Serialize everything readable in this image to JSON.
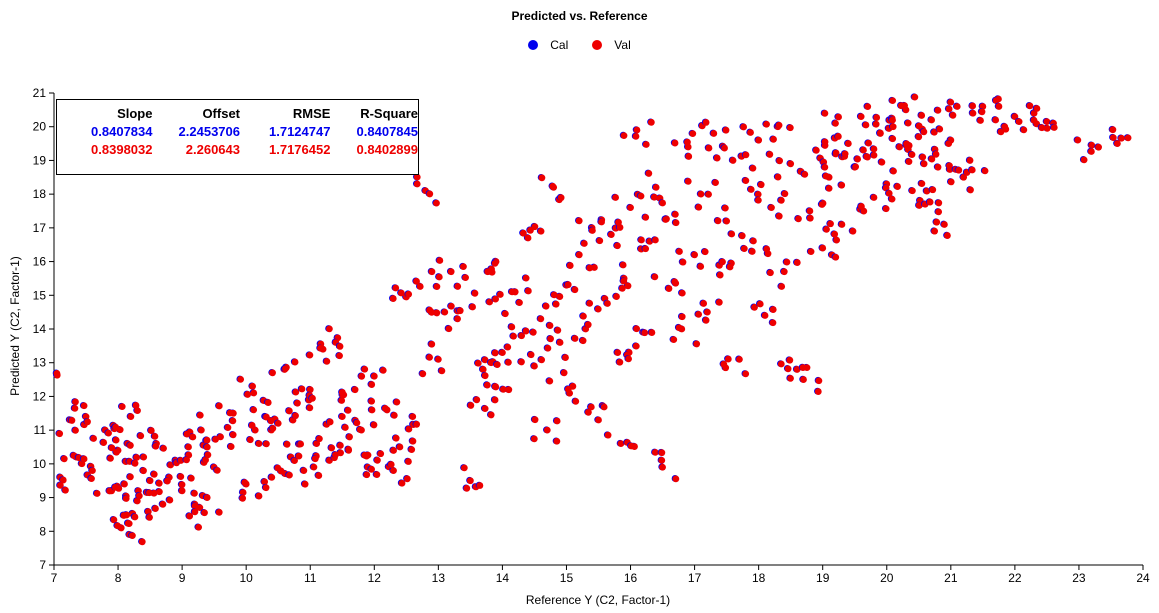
{
  "chart_data": {
    "type": "scatter",
    "title": "Predicted vs. Reference",
    "xlabel": "Reference Y (C2, Factor-1)",
    "ylabel": "Predicted Y (C2, Factor-1)",
    "xlim": [
      7,
      24
    ],
    "ylim": [
      7,
      21
    ],
    "x_ticks": [
      7,
      8,
      9,
      10,
      11,
      12,
      13,
      14,
      15,
      16,
      17,
      18,
      19,
      20,
      21,
      22,
      23,
      24
    ],
    "y_ticks": [
      7,
      8,
      9,
      10,
      11,
      12,
      13,
      14,
      15,
      16,
      17,
      18,
      19,
      20,
      21
    ],
    "legend_position": "top-center",
    "grid": false,
    "series": [
      {
        "name": "Cal",
        "color": "#0000ee"
      },
      {
        "name": "Val",
        "color": "#ee0000"
      }
    ],
    "points": [
      [
        7.05,
        12.63
      ],
      [
        7.1,
        9.6
      ],
      [
        7.25,
        11.3
      ],
      [
        7.35,
        10.2
      ],
      [
        7.5,
        11.4
      ],
      [
        7.6,
        9.8
      ],
      [
        7.8,
        11.0
      ],
      [
        7.9,
        9.2
      ],
      [
        8.0,
        10.4
      ],
      [
        8.05,
        8.1
      ],
      [
        8.1,
        9.4
      ],
      [
        8.15,
        10.6
      ],
      [
        8.18,
        7.9
      ],
      [
        8.2,
        11.4
      ],
      [
        8.3,
        8.9
      ],
      [
        8.4,
        10.2
      ],
      [
        8.5,
        9.5
      ],
      [
        8.6,
        10.6
      ],
      [
        8.7,
        8.8
      ],
      [
        8.8,
        9.6
      ],
      [
        8.9,
        10.1
      ],
      [
        9.0,
        9.2
      ],
      [
        9.1,
        10.5
      ],
      [
        9.2,
        8.8
      ],
      [
        9.3,
        11.0
      ],
      [
        9.35,
        8.55
      ],
      [
        9.5,
        9.9
      ],
      [
        9.6,
        10.8
      ],
      [
        9.8,
        11.5
      ],
      [
        10.0,
        9.4
      ],
      [
        10.1,
        12.3
      ],
      [
        10.2,
        10.6
      ],
      [
        10.3,
        11.4
      ],
      [
        10.4,
        9.6
      ],
      [
        10.5,
        11.2
      ],
      [
        10.6,
        12.8
      ],
      [
        10.7,
        10.2
      ],
      [
        10.8,
        11.8
      ],
      [
        10.9,
        9.8
      ],
      [
        11.0,
        12.2
      ],
      [
        11.1,
        10.6
      ],
      [
        11.2,
        13.4
      ],
      [
        11.3,
        10.1
      ],
      [
        11.4,
        13.6
      ],
      [
        11.5,
        11.4
      ],
      [
        11.6,
        10.4
      ],
      [
        11.7,
        12.2
      ],
      [
        11.8,
        11.0
      ],
      [
        11.9,
        9.9
      ],
      [
        12.0,
        12.6
      ],
      [
        12.1,
        10.3
      ],
      [
        12.2,
        11.6
      ],
      [
        12.3,
        9.8
      ],
      [
        12.4,
        10.5
      ],
      [
        12.5,
        14.95
      ],
      [
        12.6,
        11.4
      ],
      [
        12.8,
        18.1
      ],
      [
        12.9,
        15.7
      ],
      [
        13.0,
        13.1
      ],
      [
        13.1,
        14.5
      ],
      [
        13.2,
        15.7
      ],
      [
        13.3,
        14.3
      ],
      [
        13.5,
        9.5
      ],
      [
        13.6,
        11.9
      ],
      [
        13.7,
        12.8
      ],
      [
        13.8,
        14.8
      ],
      [
        13.9,
        16.0
      ],
      [
        14.0,
        13.3
      ],
      [
        14.1,
        12.2
      ],
      [
        14.2,
        15.1
      ],
      [
        14.3,
        13.8
      ],
      [
        14.4,
        16.7
      ],
      [
        14.5,
        12.9
      ],
      [
        14.6,
        14.3
      ],
      [
        14.7,
        11.0
      ],
      [
        14.8,
        18.2
      ],
      [
        14.9,
        13.6
      ],
      [
        15.0,
        15.3
      ],
      [
        15.1,
        12.3
      ],
      [
        15.2,
        16.2
      ],
      [
        15.3,
        14.0
      ],
      [
        15.4,
        17.0
      ],
      [
        15.5,
        11.3
      ],
      [
        15.6,
        14.9
      ],
      [
        15.7,
        16.8
      ],
      [
        15.8,
        13.3
      ],
      [
        15.85,
        10.6
      ],
      [
        15.9,
        15.5
      ],
      [
        16.0,
        17.6
      ],
      [
        16.1,
        19.9
      ],
      [
        16.2,
        13.9
      ],
      [
        16.3,
        16.6
      ],
      [
        16.4,
        18.2
      ],
      [
        16.5,
        9.9
      ],
      [
        16.6,
        15.2
      ],
      [
        16.7,
        17.4
      ],
      [
        16.8,
        14.0
      ],
      [
        16.9,
        19.4
      ],
      [
        17.0,
        16.2
      ],
      [
        17.1,
        18.0
      ],
      [
        17.2,
        14.5
      ],
      [
        17.3,
        19.8
      ],
      [
        17.4,
        15.6
      ],
      [
        17.5,
        17.2
      ],
      [
        17.6,
        19.0
      ],
      [
        17.7,
        13.1
      ],
      [
        17.8,
        18.4
      ],
      [
        17.9,
        16.3
      ],
      [
        18.0,
        19.6
      ],
      [
        18.1,
        14.4
      ],
      [
        18.2,
        17.6
      ],
      [
        18.3,
        20.0
      ],
      [
        18.4,
        15.7
      ],
      [
        18.5,
        18.9
      ],
      [
        18.6,
        12.8
      ],
      [
        18.7,
        12.5
      ],
      [
        18.8,
        17.5
      ],
      [
        18.9,
        19.3
      ],
      [
        19.0,
        16.4
      ],
      [
        19.1,
        18.5
      ],
      [
        19.2,
        20.1
      ],
      [
        19.3,
        17.1
      ],
      [
        19.4,
        19.5
      ],
      [
        19.5,
        18.8
      ],
      [
        19.6,
        20.3
      ],
      [
        19.7,
        19.1
      ],
      [
        19.8,
        17.9
      ],
      [
        19.9,
        19.8
      ],
      [
        20.0,
        18.3
      ],
      [
        20.1,
        20.0
      ],
      [
        20.2,
        19.4
      ],
      [
        20.3,
        20.5
      ],
      [
        20.4,
        18.1
      ],
      [
        20.5,
        19.7
      ],
      [
        20.6,
        17.7
      ],
      [
        20.7,
        20.2
      ],
      [
        20.8,
        18.8
      ],
      [
        20.9,
        17.1
      ],
      [
        21.0,
        19.6
      ],
      [
        21.1,
        20.6
      ],
      [
        21.2,
        18.5
      ],
      [
        21.3,
        19.0
      ],
      [
        21.5,
        20.6
      ],
      [
        21.7,
        20.2
      ],
      [
        22.0,
        20.3
      ],
      [
        22.3,
        20.4
      ],
      [
        22.5,
        20.15
      ],
      [
        23.2,
        19.45
      ],
      [
        23.6,
        19.5
      ]
    ]
  },
  "stats_table": {
    "headers": [
      "Slope",
      "Offset",
      "RMSE",
      "R-Square"
    ],
    "cal": [
      "0.8407834",
      "2.2453706",
      "1.7124747",
      "0.8407845"
    ],
    "val": [
      "0.8398032",
      "2.260643",
      "1.7176452",
      "0.8402899"
    ]
  }
}
